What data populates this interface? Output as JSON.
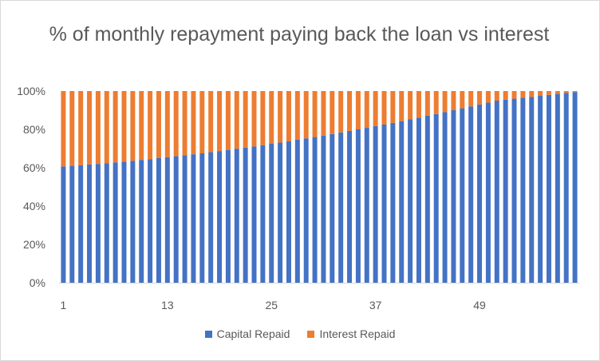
{
  "chart_data": {
    "type": "bar",
    "stacked": true,
    "title": "% of monthly repayment paying back the loan vs interest",
    "xlabel": "",
    "ylabel": "",
    "ylim": [
      0,
      1
    ],
    "yticks": [
      "0%",
      "20%",
      "40%",
      "60%",
      "80%",
      "100%"
    ],
    "x_tick_labels": [
      "1",
      "13",
      "25",
      "37",
      "49"
    ],
    "x_tick_values": [
      1,
      13,
      25,
      37,
      49
    ],
    "n_periods": 60,
    "grid": false,
    "legend_position": "bottom",
    "capital_values": [
      0.607,
      0.61,
      0.613,
      0.617,
      0.62,
      0.624,
      0.628,
      0.632,
      0.636,
      0.641,
      0.645,
      0.65,
      0.655,
      0.66,
      0.665,
      0.67,
      0.675,
      0.681,
      0.687,
      0.693,
      0.699,
      0.705,
      0.711,
      0.718,
      0.725,
      0.731,
      0.738,
      0.746,
      0.753,
      0.76,
      0.768,
      0.776,
      0.784,
      0.792,
      0.8,
      0.808,
      0.817,
      0.825,
      0.834,
      0.843,
      0.852,
      0.861,
      0.871,
      0.88,
      0.89,
      0.9,
      0.91,
      0.92,
      0.93,
      0.94,
      0.95,
      0.955,
      0.96,
      0.965,
      0.97,
      0.975,
      0.98,
      0.985,
      0.99,
      0.995
    ],
    "series": [
      {
        "name": "Capital Repaid",
        "color": "#4472c4"
      },
      {
        "name": "Interest Repaid",
        "color": "#ed7d31"
      }
    ]
  }
}
